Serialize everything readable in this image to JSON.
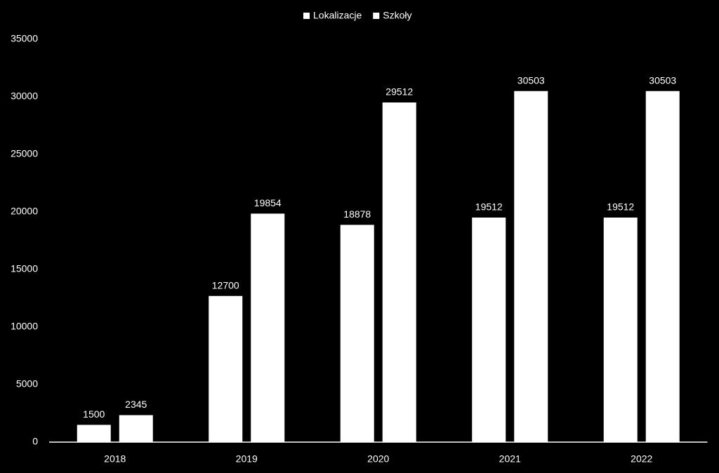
{
  "chart_data": {
    "type": "bar",
    "categories": [
      "2018",
      "2019",
      "2020",
      "2021",
      "2022"
    ],
    "series": [
      {
        "name": "Lokalizacje",
        "color": "#ffffff",
        "values": [
          1500,
          12700,
          18878,
          19512,
          19512
        ]
      },
      {
        "name": "Szkoły",
        "color": "#ffffff",
        "values": [
          2345,
          19854,
          29512,
          30503,
          30503
        ]
      }
    ],
    "ylim": [
      0,
      35000
    ],
    "yticks": [
      0,
      5000,
      10000,
      15000,
      20000,
      25000,
      30000,
      35000
    ],
    "grid": false,
    "legend": "top"
  }
}
